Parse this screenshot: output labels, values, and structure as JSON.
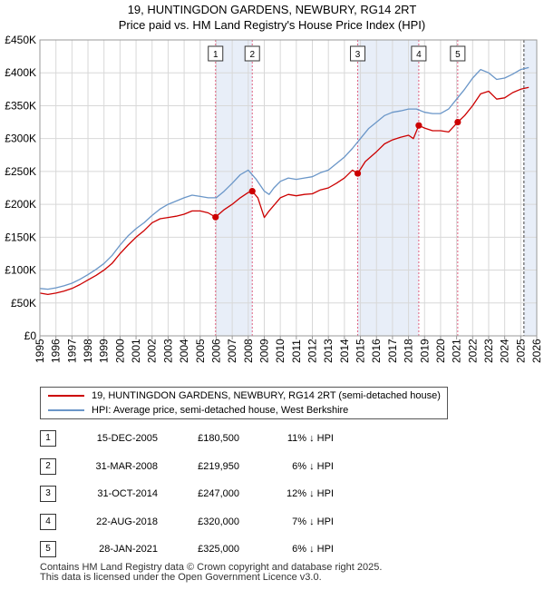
{
  "title_line1": "19, HUNTINGDON GARDENS, NEWBURY, RG14 2RT",
  "title_line2": "Price paid vs. HM Land Registry's House Price Index (HPI)",
  "colors": {
    "price_line": "#cc0000",
    "hpi_line": "#6a96c8",
    "shade": "#e8eef8",
    "marker_line": "#e06080",
    "grid": "#d8d8d8"
  },
  "chart_data": {
    "type": "line",
    "title": "19, HUNTINGDON GARDENS, NEWBURY, RG14 2RT — Price paid vs. HM Land Registry's House Price Index (HPI)",
    "xlabel": "",
    "ylabel": "",
    "xlim": [
      1995,
      2026
    ],
    "ylim": [
      0,
      450000
    ],
    "y_ticks": [
      0,
      50000,
      100000,
      150000,
      200000,
      250000,
      300000,
      350000,
      400000,
      450000
    ],
    "y_tick_labels": [
      "£0",
      "£50K",
      "£100K",
      "£150K",
      "£200K",
      "£250K",
      "£300K",
      "£350K",
      "£400K",
      "£450K"
    ],
    "x_ticks": [
      1995,
      1996,
      1997,
      1998,
      1999,
      2000,
      2001,
      2002,
      2003,
      2004,
      2005,
      2006,
      2007,
      2008,
      2009,
      2010,
      2011,
      2012,
      2013,
      2014,
      2015,
      2016,
      2017,
      2018,
      2019,
      2020,
      2021,
      2022,
      2023,
      2024,
      2025,
      2026
    ],
    "grid": true,
    "series": [
      {
        "name": "19, HUNTINGDON GARDENS, NEWBURY, RG14 2RT (semi-detached house)",
        "color": "#cc0000",
        "x": [
          1995,
          1995.5,
          1996,
          1996.5,
          1997,
          1997.5,
          1998,
          1998.5,
          1999,
          1999.5,
          2000,
          2000.5,
          2001,
          2001.5,
          2002,
          2002.5,
          2003,
          2003.5,
          2004,
          2004.5,
          2005,
          2005.5,
          2005.96,
          2006.5,
          2007,
          2007.5,
          2008,
          2008.25,
          2008.6,
          2009,
          2009.3,
          2010,
          2010.5,
          2011,
          2011.5,
          2012,
          2012.5,
          2013,
          2013.5,
          2014,
          2014.5,
          2014.83,
          2015.3,
          2016,
          2016.5,
          2017,
          2017.5,
          2018,
          2018.3,
          2018.64,
          2019,
          2019.5,
          2020,
          2020.5,
          2021.07,
          2021.5,
          2022,
          2022.5,
          2023,
          2023.5,
          2024,
          2024.5,
          2025,
          2025.5
        ],
        "values": [
          65000,
          63000,
          65000,
          68000,
          72000,
          78000,
          85000,
          92000,
          100000,
          110000,
          125000,
          138000,
          150000,
          160000,
          172000,
          178000,
          180000,
          182000,
          185000,
          190000,
          190000,
          187000,
          180500,
          192000,
          200000,
          210000,
          218000,
          219950,
          210000,
          180000,
          190000,
          210000,
          215000,
          213000,
          215000,
          216000,
          222000,
          225000,
          232000,
          240000,
          252000,
          247000,
          265000,
          280000,
          292000,
          298000,
          302000,
          305000,
          300000,
          320000,
          316000,
          312000,
          312000,
          310000,
          325000,
          335000,
          350000,
          368000,
          372000,
          360000,
          362000,
          370000,
          375000,
          378000
        ]
      },
      {
        "name": "HPI: Average price, semi-detached house, West Berkshire",
        "color": "#6a96c8",
        "x": [
          1995,
          1995.5,
          1996,
          1996.5,
          1997,
          1997.5,
          1998,
          1998.5,
          1999,
          1999.5,
          2000,
          2000.5,
          2001,
          2001.5,
          2002,
          2002.5,
          2003,
          2003.5,
          2004,
          2004.5,
          2005,
          2005.5,
          2006,
          2006.5,
          2007,
          2007.5,
          2008,
          2008.5,
          2009,
          2009.3,
          2009.6,
          2010,
          2010.5,
          2011,
          2011.5,
          2012,
          2012.5,
          2013,
          2013.5,
          2014,
          2014.5,
          2015,
          2015.5,
          2016,
          2016.5,
          2017,
          2017.5,
          2018,
          2018.5,
          2019,
          2019.5,
          2020,
          2020.5,
          2021,
          2021.5,
          2022,
          2022.5,
          2023,
          2023.5,
          2024,
          2024.5,
          2025,
          2025.5
        ],
        "values": [
          72000,
          71000,
          73000,
          76000,
          80000,
          86000,
          93000,
          101000,
          110000,
          122000,
          138000,
          152000,
          163000,
          172000,
          183000,
          193000,
          200000,
          205000,
          210000,
          214000,
          212000,
          210000,
          210000,
          220000,
          232000,
          245000,
          252000,
          238000,
          220000,
          215000,
          225000,
          235000,
          240000,
          238000,
          240000,
          242000,
          248000,
          252000,
          262000,
          272000,
          285000,
          300000,
          315000,
          325000,
          335000,
          340000,
          342000,
          345000,
          345000,
          340000,
          338000,
          338000,
          345000,
          360000,
          375000,
          392000,
          405000,
          400000,
          390000,
          392000,
          398000,
          405000,
          408000
        ]
      }
    ],
    "sales": [
      {
        "num": "1",
        "x": 2005.96
      },
      {
        "num": "2",
        "x": 2008.25
      },
      {
        "num": "3",
        "x": 2014.83
      },
      {
        "num": "4",
        "x": 2018.64
      },
      {
        "num": "5",
        "x": 2021.07
      }
    ],
    "shaded_spans": [
      [
        2005.96,
        2008.25
      ],
      [
        2014.83,
        2018.64
      ],
      [
        2025.2,
        2026
      ]
    ]
  },
  "legend": {
    "price_label": "19, HUNTINGDON GARDENS, NEWBURY, RG14 2RT (semi-detached house)",
    "hpi_label": "HPI: Average price, semi-detached house, West Berkshire"
  },
  "table": [
    {
      "num": "1",
      "date": "15-DEC-2005",
      "price": "£180,500",
      "diff": "11% ↓ HPI"
    },
    {
      "num": "2",
      "date": "31-MAR-2008",
      "price": "£219,950",
      "diff": "6% ↓ HPI"
    },
    {
      "num": "3",
      "date": "31-OCT-2014",
      "price": "£247,000",
      "diff": "12% ↓ HPI"
    },
    {
      "num": "4",
      "date": "22-AUG-2018",
      "price": "£320,000",
      "diff": "7% ↓ HPI"
    },
    {
      "num": "5",
      "date": "28-JAN-2021",
      "price": "£325,000",
      "diff": "6% ↓ HPI"
    }
  ],
  "footer_line1": "Contains HM Land Registry data © Crown copyright and database right 2025.",
  "footer_line2": "This data is licensed under the Open Government Licence v3.0."
}
